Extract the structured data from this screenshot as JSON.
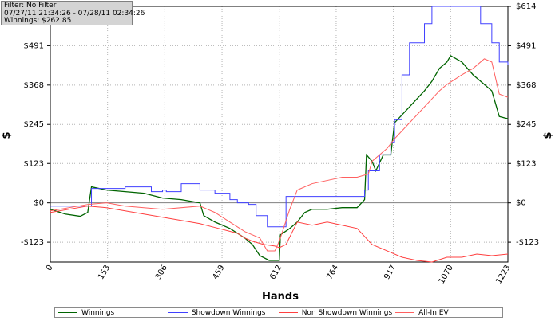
{
  "filter": {
    "line1": "Filter: No Filter",
    "line2": "07/27/11 21:34:26 - 07/28/11 02:34:26",
    "line3": "Winnings: $262.85"
  },
  "colors": {
    "winnings": "#006400",
    "showdown": "#4040ff",
    "nonshowdown": "#ff4040",
    "allin": "#ff6060",
    "zero_line": "#808080",
    "grid": "#b4b4b4"
  },
  "chart_data": {
    "type": "line",
    "xlabel": "Hands",
    "ylabel_left": "$",
    "ylabel_right": "$",
    "xlim": [
      0,
      1223
    ],
    "ylim": [
      -185,
      614
    ],
    "x_ticks": [
      "0",
      "153",
      "306",
      "459",
      "612",
      "764",
      "917",
      "1070",
      "1223"
    ],
    "y_ticks": [
      {
        "value": -123,
        "label": "-$123"
      },
      {
        "value": 0,
        "label": "$0"
      },
      {
        "value": 123,
        "label": "$123"
      },
      {
        "value": 245,
        "label": "$245"
      },
      {
        "value": 368,
        "label": "$368"
      },
      {
        "value": 491,
        "label": "$491"
      },
      {
        "value": 614,
        "label": "$614"
      }
    ],
    "grid": "dotted vertical and horizontal",
    "legend_placement": "bottom",
    "series": [
      {
        "name": "Winnings",
        "color_key": "winnings",
        "step": false,
        "points": [
          [
            0,
            -20
          ],
          [
            40,
            -35
          ],
          [
            80,
            -42
          ],
          [
            100,
            -30
          ],
          [
            110,
            50
          ],
          [
            150,
            40
          ],
          [
            200,
            35
          ],
          [
            250,
            30
          ],
          [
            300,
            15
          ],
          [
            350,
            10
          ],
          [
            400,
            0
          ],
          [
            410,
            -40
          ],
          [
            440,
            -60
          ],
          [
            480,
            -80
          ],
          [
            520,
            -110
          ],
          [
            540,
            -130
          ],
          [
            560,
            -165
          ],
          [
            585,
            -180
          ],
          [
            600,
            -180
          ],
          [
            612,
            -180
          ],
          [
            615,
            -100
          ],
          [
            640,
            -80
          ],
          [
            660,
            -60
          ],
          [
            680,
            -30
          ],
          [
            700,
            -20
          ],
          [
            740,
            -20
          ],
          [
            780,
            -15
          ],
          [
            820,
            -15
          ],
          [
            840,
            10
          ],
          [
            845,
            150
          ],
          [
            860,
            130
          ],
          [
            870,
            100
          ],
          [
            890,
            150
          ],
          [
            910,
            150
          ],
          [
            920,
            250
          ],
          [
            960,
            300
          ],
          [
            1000,
            350
          ],
          [
            1020,
            380
          ],
          [
            1040,
            420
          ],
          [
            1060,
            440
          ],
          [
            1070,
            460
          ],
          [
            1100,
            440
          ],
          [
            1130,
            400
          ],
          [
            1160,
            370
          ],
          [
            1180,
            350
          ],
          [
            1200,
            270
          ],
          [
            1223,
            262.85
          ]
        ]
      },
      {
        "name": "Showdown Winnings",
        "color_key": "showdown",
        "step": true,
        "points": [
          [
            0,
            -10
          ],
          [
            100,
            -10
          ],
          [
            110,
            45
          ],
          [
            160,
            45
          ],
          [
            200,
            50
          ],
          [
            250,
            50
          ],
          [
            270,
            35
          ],
          [
            300,
            40
          ],
          [
            310,
            35
          ],
          [
            350,
            60
          ],
          [
            400,
            40
          ],
          [
            440,
            30
          ],
          [
            480,
            10
          ],
          [
            500,
            0
          ],
          [
            530,
            -5
          ],
          [
            550,
            -40
          ],
          [
            580,
            -75
          ],
          [
            612,
            -75
          ],
          [
            630,
            20
          ],
          [
            760,
            20
          ],
          [
            840,
            40
          ],
          [
            850,
            100
          ],
          [
            880,
            150
          ],
          [
            910,
            190
          ],
          [
            920,
            260
          ],
          [
            940,
            400
          ],
          [
            960,
            500
          ],
          [
            1000,
            560
          ],
          [
            1020,
            614
          ],
          [
            1070,
            614
          ],
          [
            1100,
            614
          ],
          [
            1150,
            560
          ],
          [
            1180,
            500
          ],
          [
            1200,
            440
          ],
          [
            1223,
            430
          ]
        ]
      },
      {
        "name": "Non Showdown Winnings",
        "color_key": "nonshowdown",
        "step": false,
        "points": [
          [
            0,
            -30
          ],
          [
            100,
            -10
          ],
          [
            150,
            -15
          ],
          [
            200,
            -25
          ],
          [
            250,
            -35
          ],
          [
            300,
            -45
          ],
          [
            350,
            -55
          ],
          [
            400,
            -65
          ],
          [
            450,
            -80
          ],
          [
            500,
            -95
          ],
          [
            520,
            -110
          ],
          [
            540,
            -120
          ],
          [
            570,
            -130
          ],
          [
            600,
            -135
          ],
          [
            612,
            -140
          ],
          [
            630,
            -130
          ],
          [
            660,
            -60
          ],
          [
            700,
            -70
          ],
          [
            740,
            -60
          ],
          [
            780,
            -70
          ],
          [
            820,
            -80
          ],
          [
            860,
            -130
          ],
          [
            900,
            -150
          ],
          [
            940,
            -170
          ],
          [
            980,
            -180
          ],
          [
            1020,
            -190
          ],
          [
            1060,
            -170
          ],
          [
            1100,
            -170
          ],
          [
            1140,
            -160
          ],
          [
            1180,
            -165
          ],
          [
            1223,
            -160
          ]
        ]
      },
      {
        "name": "All-In EV",
        "color_key": "allin",
        "step": false,
        "points": [
          [
            0,
            -25
          ],
          [
            100,
            -5
          ],
          [
            150,
            0
          ],
          [
            200,
            -10
          ],
          [
            300,
            -20
          ],
          [
            400,
            -10
          ],
          [
            440,
            -30
          ],
          [
            480,
            -60
          ],
          [
            520,
            -90
          ],
          [
            540,
            -100
          ],
          [
            560,
            -110
          ],
          [
            580,
            -150
          ],
          [
            600,
            -150
          ],
          [
            612,
            -120
          ],
          [
            640,
            -20
          ],
          [
            660,
            40
          ],
          [
            700,
            60
          ],
          [
            740,
            70
          ],
          [
            780,
            80
          ],
          [
            820,
            80
          ],
          [
            850,
            90
          ],
          [
            860,
            130
          ],
          [
            880,
            150
          ],
          [
            900,
            170
          ],
          [
            920,
            200
          ],
          [
            960,
            250
          ],
          [
            1000,
            300
          ],
          [
            1040,
            350
          ],
          [
            1060,
            370
          ],
          [
            1100,
            400
          ],
          [
            1130,
            420
          ],
          [
            1160,
            450
          ],
          [
            1180,
            440
          ],
          [
            1200,
            340
          ],
          [
            1223,
            330
          ]
        ]
      }
    ]
  }
}
